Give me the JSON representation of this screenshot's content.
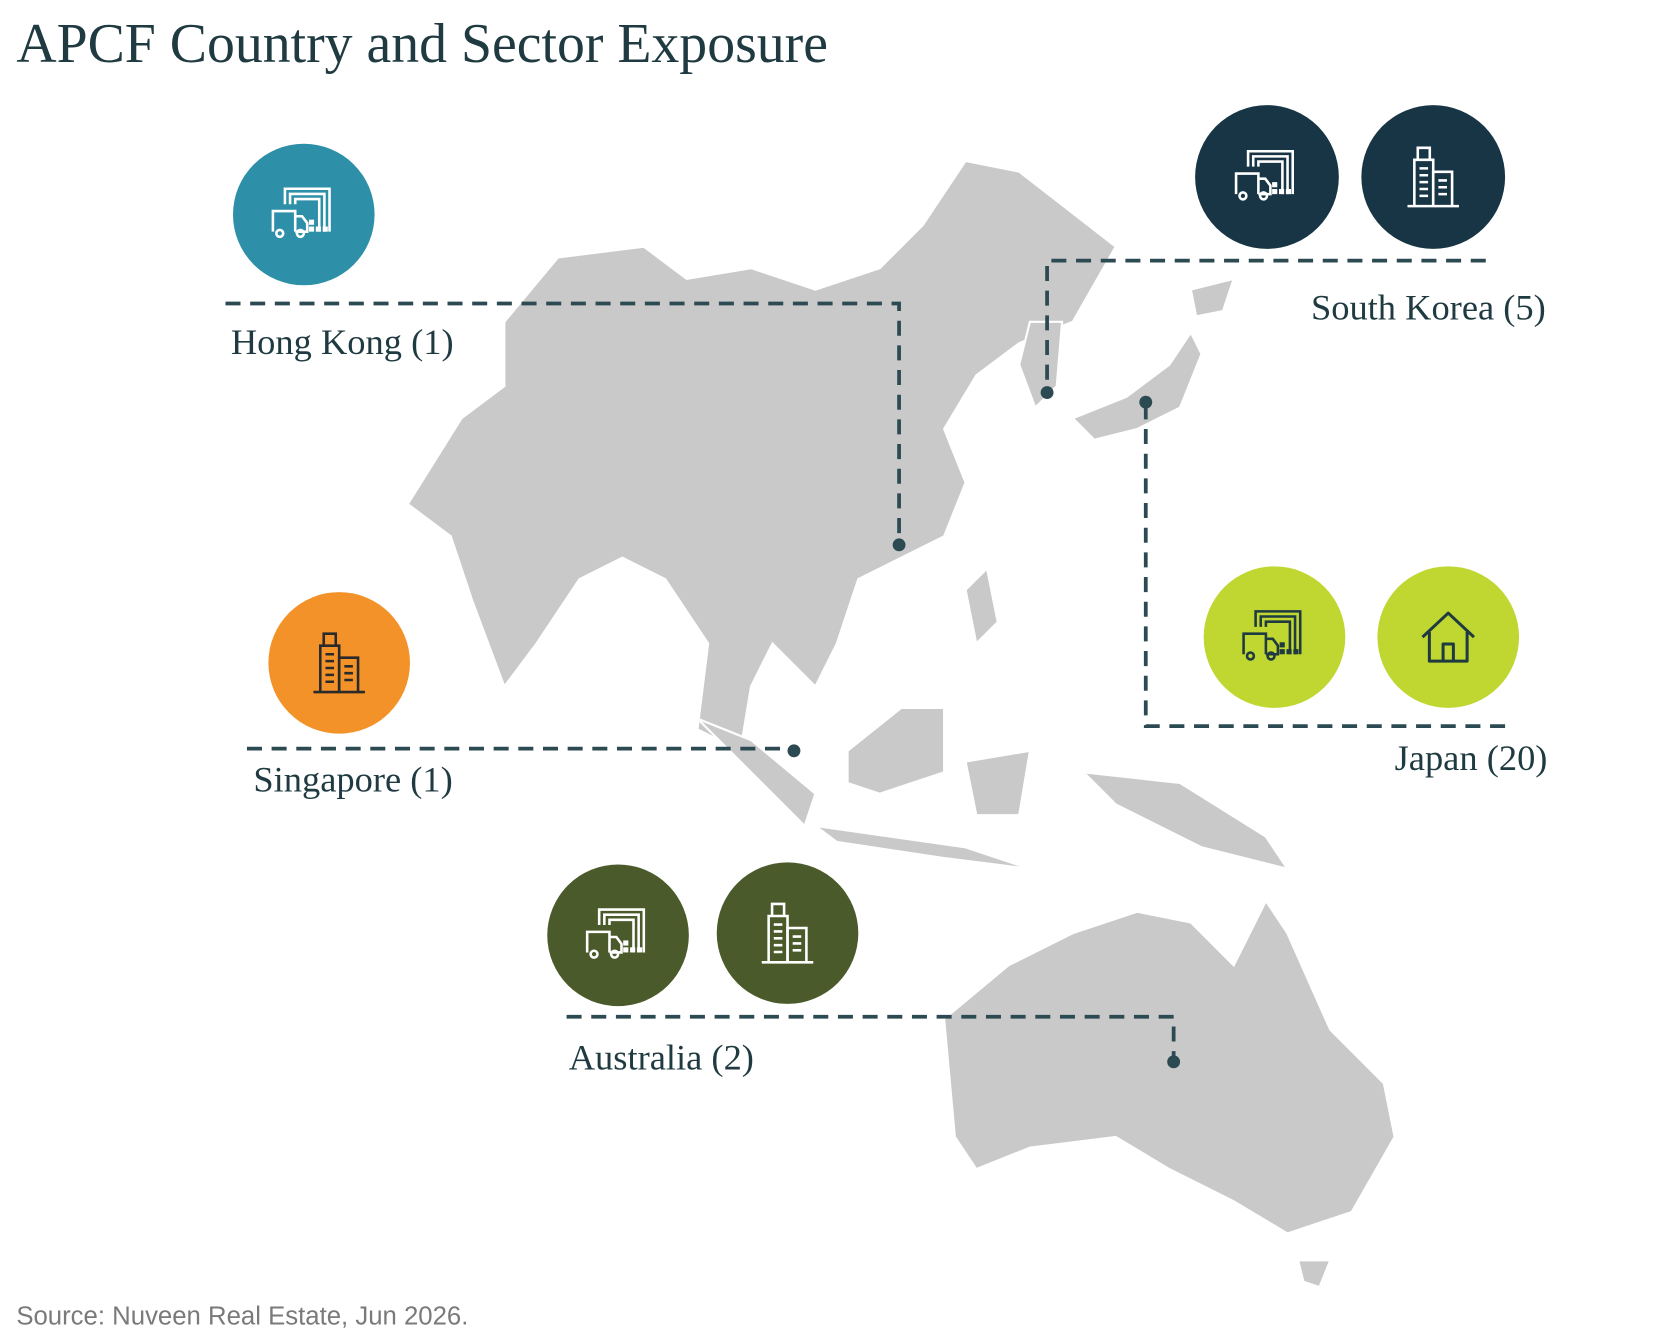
{
  "title": "APCF Country and Sector Exposure",
  "countries": [
    {
      "label": "Hong Kong (1)"
    },
    {
      "label": "South Korea (5)"
    },
    {
      "label": "Singapore (1)"
    },
    {
      "label": "Japan (20)"
    },
    {
      "label": "Australia (2)"
    }
  ],
  "source": "Source: Nuveen Real Estate, Jun 2026."
}
